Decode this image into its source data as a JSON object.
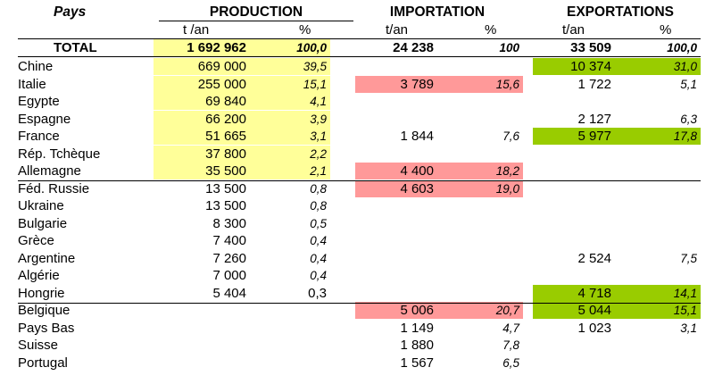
{
  "header": {
    "pays_label": "Pays",
    "production_label": "PRODUCTION",
    "importation_label": "IMPORTATION",
    "exportations_label": "EXPORTATIONS",
    "prod_unit": "t /an",
    "imp_unit": "t/an",
    "exp_unit": "t/an",
    "pct_label": "%"
  },
  "total": {
    "label": "TOTAL",
    "prod_t": "1 692 962",
    "prod_pct": "100,0",
    "imp_t": "24 238",
    "imp_pct": "100",
    "exp_t": "33 509",
    "exp_pct": "100,0"
  },
  "rows": [
    {
      "country": "Chine",
      "prod_t": "669 000",
      "prod_pct": "39,5",
      "imp_t": "",
      "imp_pct": "",
      "exp_t": "10 374",
      "exp_pct": "31,0"
    },
    {
      "country": "Italie",
      "prod_t": "255 000",
      "prod_pct": "15,1",
      "imp_t": "3 789",
      "imp_pct": "15,6",
      "exp_t": "1 722",
      "exp_pct": "5,1"
    },
    {
      "country": "Egypte",
      "prod_t": "69 840",
      "prod_pct": "4,1",
      "imp_t": "",
      "imp_pct": "",
      "exp_t": "",
      "exp_pct": ""
    },
    {
      "country": "Espagne",
      "prod_t": "66 200",
      "prod_pct": "3,9",
      "imp_t": "",
      "imp_pct": "",
      "exp_t": "2 127",
      "exp_pct": "6,3"
    },
    {
      "country": "France",
      "prod_t": "51 665",
      "prod_pct": "3,1",
      "imp_t": "1 844",
      "imp_pct": "7,6",
      "exp_t": "5 977",
      "exp_pct": "17,8"
    },
    {
      "country": "Rép. Tchèque",
      "prod_t": "37 800",
      "prod_pct": "2,2",
      "imp_t": "",
      "imp_pct": "",
      "exp_t": "",
      "exp_pct": ""
    },
    {
      "country": "Allemagne",
      "prod_t": "35 500",
      "prod_pct": "2,1",
      "imp_t": "4 400",
      "imp_pct": "18,2",
      "exp_t": "",
      "exp_pct": ""
    },
    {
      "country": "Féd. Russie",
      "prod_t": "13 500",
      "prod_pct": "0,8",
      "imp_t": "4 603",
      "imp_pct": "19,0",
      "exp_t": "",
      "exp_pct": ""
    },
    {
      "country": "Ukraine",
      "prod_t": "13 500",
      "prod_pct": "0,8",
      "imp_t": "",
      "imp_pct": "",
      "exp_t": "",
      "exp_pct": ""
    },
    {
      "country": "Bulgarie",
      "prod_t": "8 300",
      "prod_pct": "0,5",
      "imp_t": "",
      "imp_pct": "",
      "exp_t": "",
      "exp_pct": ""
    },
    {
      "country": "Grèce",
      "prod_t": "7 400",
      "prod_pct": "0,4",
      "imp_t": "",
      "imp_pct": "",
      "exp_t": "",
      "exp_pct": ""
    },
    {
      "country": "Argentine",
      "prod_t": "7 260",
      "prod_pct": "0,4",
      "imp_t": "",
      "imp_pct": "",
      "exp_t": "2 524",
      "exp_pct": "7,5"
    },
    {
      "country": "Algérie",
      "prod_t": "7 000",
      "prod_pct": "0,4",
      "imp_t": "",
      "imp_pct": "",
      "exp_t": "",
      "exp_pct": ""
    },
    {
      "country": "Hongrie",
      "prod_t": "5 404",
      "prod_pct": "0,3",
      "imp_t": "",
      "imp_pct": "",
      "exp_t": "4 718",
      "exp_pct": "14,1"
    },
    {
      "country": "Belgique",
      "prod_t": "",
      "prod_pct": "",
      "imp_t": "5 006",
      "imp_pct": "20,7",
      "exp_t": "5 044",
      "exp_pct": "15,1"
    },
    {
      "country": "Pays Bas",
      "prod_t": "",
      "prod_pct": "",
      "imp_t": "1 149",
      "imp_pct": "4,7",
      "exp_t": "1 023",
      "exp_pct": "3,1"
    },
    {
      "country": "Suisse",
      "prod_t": "",
      "prod_pct": "",
      "imp_t": "1 880",
      "imp_pct": "7,8",
      "exp_t": "",
      "exp_pct": ""
    },
    {
      "country": "Portugal",
      "prod_t": "",
      "prod_pct": "",
      "imp_t": "1 567",
      "imp_pct": "6,5",
      "exp_t": "",
      "exp_pct": ""
    }
  ],
  "highlight_colors": {
    "production": "#ffff99",
    "importation": "#ff9999",
    "exportation": "#99cc00"
  }
}
